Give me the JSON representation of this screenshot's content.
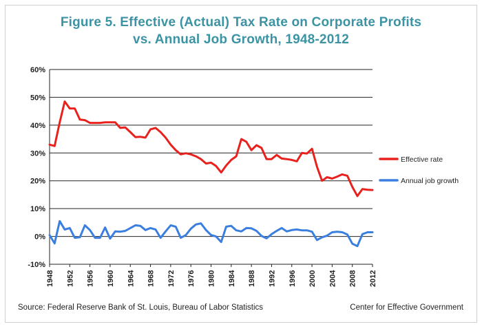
{
  "chart_data": {
    "type": "line",
    "title": "Figure 5. Effective (Actual) Tax Rate on Corporate Profits",
    "subtitle": "vs. Annual  Job Growth, 1948-2012",
    "xlabel": "",
    "ylabel": "",
    "ylim": [
      -10,
      60
    ],
    "xlim": [
      1948,
      2012
    ],
    "yticks": [
      "60%",
      "50%",
      "40%",
      "30%",
      "20%",
      "10%",
      "0%",
      "-10%"
    ],
    "xticks": [
      "1948",
      "1952",
      "1956",
      "1960",
      "1964",
      "1968",
      "1972",
      "1976",
      "1980",
      "1984",
      "1988",
      "1992",
      "1996",
      "2000",
      "2004",
      "2008",
      "2012"
    ],
    "grid": "horizontal",
    "legend": "right",
    "x": [
      1948,
      1949,
      1950,
      1951,
      1952,
      1953,
      1954,
      1955,
      1956,
      1957,
      1958,
      1959,
      1960,
      1961,
      1962,
      1963,
      1964,
      1965,
      1966,
      1967,
      1968,
      1969,
      1970,
      1971,
      1972,
      1973,
      1974,
      1975,
      1976,
      1977,
      1978,
      1979,
      1980,
      1981,
      1982,
      1983,
      1984,
      1985,
      1986,
      1987,
      1988,
      1989,
      1990,
      1991,
      1992,
      1993,
      1994,
      1995,
      1996,
      1997,
      1998,
      1999,
      2000,
      2001,
      2002,
      2003,
      2004,
      2005,
      2006,
      2007,
      2008,
      2009,
      2010,
      2011,
      2012
    ],
    "series": [
      {
        "name": "Effective rate",
        "color": "#e8211c",
        "values": [
          33,
          32.5,
          41,
          48.5,
          46,
          46,
          42,
          41.8,
          40.8,
          40.8,
          40.8,
          41,
          41,
          41,
          39,
          39.2,
          37.5,
          35.7,
          35.8,
          35.5,
          38.5,
          39,
          37.5,
          35.5,
          33,
          31,
          29.5,
          29.9,
          29.5,
          28.8,
          27.8,
          26.2,
          26.5,
          25.3,
          23,
          25.5,
          27.5,
          28.8,
          35,
          34,
          31,
          32.8,
          31.8,
          27.8,
          27.8,
          29.3,
          28,
          27.8,
          27.5,
          27,
          30,
          29.8,
          31.5,
          25,
          20,
          21.3,
          20.8,
          21.5,
          22.3,
          21.8,
          17.8,
          14.5,
          17,
          16.8,
          16.7
        ]
      },
      {
        "name": "Annual job growth",
        "color": "#3a7fe0",
        "values": [
          0.5,
          -2.5,
          5.5,
          2.5,
          3,
          -0.5,
          -0.3,
          4,
          2.3,
          -0.5,
          -0.5,
          3.2,
          -0.8,
          1.8,
          1.7,
          2,
          3,
          4,
          3.8,
          2.3,
          3,
          2.5,
          -0.5,
          1.8,
          4,
          3.5,
          -0.5,
          0.5,
          2.8,
          4.3,
          4.7,
          2.3,
          0.5,
          0,
          -2,
          3.5,
          3.8,
          2.2,
          1.8,
          3,
          2.9,
          2,
          0.2,
          -0.7,
          0.8,
          2,
          3,
          1.8,
          2.3,
          2.5,
          2.2,
          2.2,
          1.7,
          -1.3,
          -0.3,
          0.3,
          1.5,
          1.7,
          1.5,
          0.7,
          -2.6,
          -3.5,
          0.8,
          1.5,
          1.5
        ]
      }
    ]
  },
  "footer": {
    "source": "Source: Federal Reserve Bank of St. Louis, Bureau of Labor Statistics",
    "credit": "Center for Effective Government"
  }
}
